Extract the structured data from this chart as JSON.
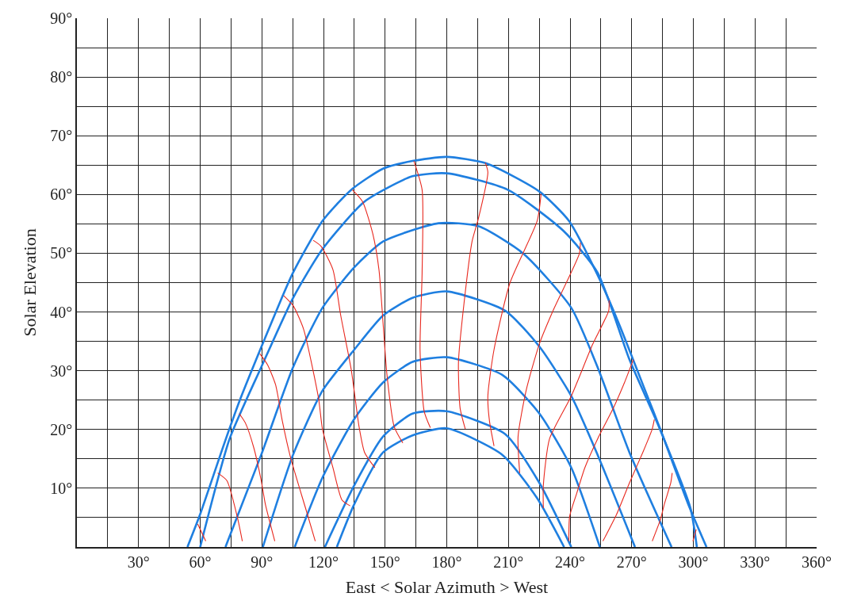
{
  "chart_data": {
    "type": "line",
    "xlabel": "East < Solar Azimuth > West",
    "ylabel": "Solar Elevation",
    "xlim": [
      0,
      360
    ],
    "ylim": [
      0,
      90
    ],
    "xticks": [
      {
        "value": 15,
        "label": null
      },
      {
        "value": 30,
        "label": "30°"
      },
      {
        "value": 45,
        "label": null
      },
      {
        "value": 60,
        "label": "60°"
      },
      {
        "value": 75,
        "label": null
      },
      {
        "value": 90,
        "label": "90°"
      },
      {
        "value": 105,
        "label": null
      },
      {
        "value": 120,
        "label": "120°"
      },
      {
        "value": 135,
        "label": null
      },
      {
        "value": 150,
        "label": "150°"
      },
      {
        "value": 165,
        "label": null
      },
      {
        "value": 180,
        "label": "180°"
      },
      {
        "value": 195,
        "label": null
      },
      {
        "value": 210,
        "label": "210°"
      },
      {
        "value": 225,
        "label": null
      },
      {
        "value": 240,
        "label": "240°"
      },
      {
        "value": 255,
        "label": null
      },
      {
        "value": 270,
        "label": "270°"
      },
      {
        "value": 285,
        "label": null
      },
      {
        "value": 300,
        "label": "300°"
      },
      {
        "value": 315,
        "label": null
      },
      {
        "value": 330,
        "label": "330°"
      },
      {
        "value": 345,
        "label": null
      },
      {
        "value": 360,
        "label": "360°"
      }
    ],
    "yticks": [
      {
        "value": 5,
        "label": null
      },
      {
        "value": 10,
        "label": "10°"
      },
      {
        "value": 15,
        "label": null
      },
      {
        "value": 20,
        "label": "20°"
      },
      {
        "value": 25,
        "label": null
      },
      {
        "value": 30,
        "label": "30°"
      },
      {
        "value": 35,
        "label": null
      },
      {
        "value": 40,
        "label": "40°"
      },
      {
        "value": 45,
        "label": null
      },
      {
        "value": 50,
        "label": "50°"
      },
      {
        "value": 55,
        "label": null
      },
      {
        "value": 60,
        "label": "60°"
      },
      {
        "value": 65,
        "label": null
      },
      {
        "value": 70,
        "label": "70°"
      },
      {
        "value": 75,
        "label": null
      },
      {
        "value": 80,
        "label": "80°"
      },
      {
        "value": 85,
        "label": null
      },
      {
        "value": 90,
        "label": "90°"
      }
    ],
    "grid": true,
    "marker": "none",
    "line_style": "solid",
    "series": [
      {
        "color": "#1f7fe0",
        "x": [
          53.8,
          60,
          71.6,
          79.3,
          89.7,
          100.2,
          105.2,
          119.5,
          133.5,
          149,
          163.3,
          180,
          199.2,
          225.1,
          239.5,
          253.4,
          263.8,
          276.6,
          284.3,
          297.5,
          306.4
        ],
        "values": [
          0,
          5.6,
          17.5,
          25,
          34,
          42.8,
          46.7,
          55.5,
          60.8,
          64.4,
          65.7,
          66.4,
          65.3,
          60.5,
          55.5,
          46.3,
          38,
          26.6,
          19.7,
          7.3,
          0
        ]
      },
      {
        "color": "#1f7fe0",
        "x": [
          60,
          74.3,
          89.7,
          105.2,
          119.5,
          140,
          163.3,
          180,
          209.7,
          236.8,
          253.4,
          268.9,
          283.2,
          298.6,
          301.7
        ],
        "values": [
          0,
          18.4,
          30.6,
          42.4,
          50.7,
          58.8,
          63.1,
          63.6,
          60.8,
          53.8,
          46.7,
          31.9,
          20.5,
          6.6,
          0
        ]
      },
      {
        "color": "#1f7fe0",
        "x": [
          72.3,
          89.7,
          105.2,
          119.5,
          135,
          149,
          176,
          195.4,
          217.4,
          240.6,
          253.4,
          268.9,
          289.4
        ],
        "values": [
          0,
          15.7,
          30.6,
          40.7,
          47.6,
          52,
          55.1,
          54.6,
          49.9,
          40.7,
          30.6,
          16.1,
          0
        ]
      },
      {
        "color": "#1f7fe0",
        "x": [
          90.5,
          105.2,
          119.5,
          135,
          149,
          163.3,
          180,
          208.5,
          225.1,
          240.6,
          253.4,
          271.6
        ],
        "values": [
          0,
          15.7,
          26.6,
          33.6,
          39.4,
          42.4,
          43.5,
          40.2,
          34.1,
          25.7,
          15.7,
          0
        ]
      },
      {
        "color": "#1f7fe0",
        "x": [
          106,
          119.5,
          135,
          149,
          163.3,
          180,
          207,
          225.1,
          240.6,
          254.5
        ],
        "values": [
          0,
          11.8,
          21.8,
          28,
          31.5,
          32.3,
          29.3,
          22.7,
          13.5,
          0
        ]
      },
      {
        "color": "#1f7fe0",
        "x": [
          120.7,
          135,
          149,
          163.3,
          180,
          208.5,
          225.1,
          240.6
        ],
        "values": [
          0,
          10.5,
          18.8,
          22.7,
          23.1,
          19.2,
          10.9,
          0
        ]
      },
      {
        "color": "#1f7fe0",
        "x": [
          126.5,
          135,
          149,
          163.3,
          180,
          207,
          224,
          237.1
        ],
        "values": [
          0,
          7.3,
          16.1,
          19,
          20.2,
          15.7,
          8.3,
          0
        ]
      },
      {
        "color": "#e8281e",
        "x": [
          58.8,
          62.7
        ],
        "values": [
          3.9,
          1
        ]
      },
      {
        "color": "#e8281e",
        "x": [
          68.5,
          73,
          78,
          80.5
        ],
        "values": [
          12.6,
          11.3,
          5.2,
          1
        ]
      },
      {
        "color": "#e8281e",
        "x": [
          79,
          82,
          86,
          89.7,
          91.7,
          96.3
        ],
        "values": [
          22.7,
          21.1,
          17,
          11.3,
          7.3,
          1
        ]
      },
      {
        "color": "#e8281e",
        "x": [
          89,
          92.8,
          96.7,
          100,
          104,
          111.8,
          116
        ],
        "values": [
          32.9,
          31,
          27.6,
          21.4,
          15.2,
          6,
          1
        ]
      },
      {
        "color": "#e8281e",
        "x": [
          100.6,
          105.2,
          110.3,
          117.6,
          119.5,
          124.6,
          129,
          133
        ],
        "values": [
          42.8,
          41.1,
          37.1,
          25.3,
          20.1,
          13.5,
          8,
          7
        ]
      },
      {
        "color": "#e8281e",
        "x": [
          115,
          118.8,
          124.6,
          128.4,
          133.5,
          137.3,
          140,
          145
        ],
        "values": [
          52.2,
          51.2,
          47.2,
          39.4,
          30.2,
          20.5,
          16.1,
          13.5
        ]
      },
      {
        "color": "#e8281e",
        "x": [
          134,
          139,
          144,
          147,
          149,
          150.9,
          154.4,
          158.6
        ],
        "values": [
          60.8,
          58.8,
          53.3,
          47.2,
          38.1,
          29.3,
          20.5,
          17.7
        ]
      },
      {
        "color": "#e8281e",
        "x": [
          164,
          168,
          168,
          167,
          169,
          172
        ],
        "values": [
          65.7,
          60.8,
          46.7,
          33.6,
          23.1,
          20.3
        ]
      },
      {
        "color": "#e8281e",
        "x": [
          198.8,
          200,
          195.4,
          192.3,
          188.4,
          185.7,
          186.5,
          189
        ],
        "values": [
          65.4,
          63.8,
          55.9,
          52,
          41.5,
          31.5,
          23.6,
          20.1
        ]
      },
      {
        "color": "#e8281e",
        "x": [
          225.9,
          224,
          210.8,
          203,
          200,
          200.8,
          203
        ],
        "values": [
          60.1,
          55.5,
          45,
          33.6,
          25.7,
          21.4,
          17.2
        ]
      },
      {
        "color": "#e8281e",
        "x": [
          245,
          244.5,
          231.7,
          225,
          218.6,
          214.7,
          215.5
        ],
        "values": [
          51.8,
          49.9,
          40.2,
          34.5,
          26.6,
          18.8,
          12.6
        ]
      },
      {
        "color": "#e8281e",
        "x": [
          259,
          258.8,
          251,
          240.6,
          230,
          227,
          227
        ],
        "values": [
          42,
          40.2,
          34.5,
          25.7,
          18.4,
          10.5,
          6.6
        ]
      },
      {
        "color": "#e8281e",
        "x": [
          270.8,
          266.5,
          261,
          253.4,
          247.2,
          243.3,
          239.8,
          239.4
        ],
        "values": [
          31.9,
          28,
          23.6,
          18.4,
          13.5,
          9.2,
          5.2,
          1
        ]
      },
      {
        "color": "#e8281e",
        "x": [
          281,
          280,
          275.4,
          268.9,
          262.7,
          256
        ],
        "values": [
          21.7,
          20.1,
          16.1,
          10.9,
          5.6,
          1
        ]
      },
      {
        "color": "#e8281e",
        "x": [
          289.7,
          289,
          285.9,
          284,
          280
        ],
        "values": [
          12.6,
          10.9,
          7.3,
          4.7,
          1
        ]
      },
      {
        "color": "#e8281e",
        "x": [
          301.4,
          299.8
        ],
        "values": [
          3,
          1
        ]
      }
    ]
  }
}
